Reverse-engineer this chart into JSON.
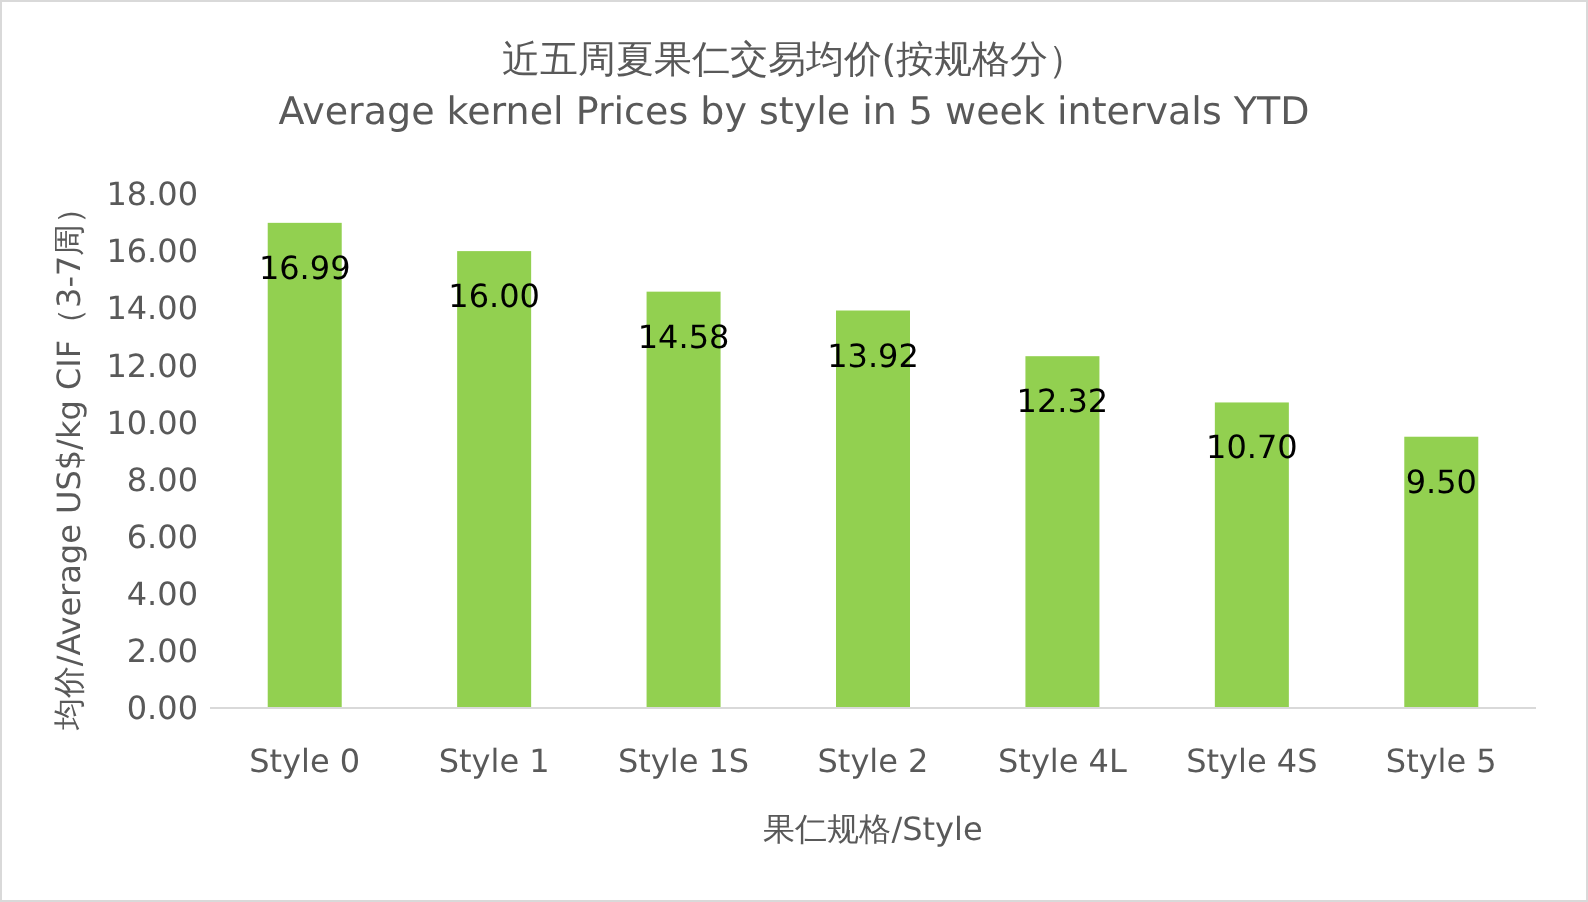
{
  "chart_data": {
    "type": "bar",
    "title": "近五周夏果仁交易均价(按规格分）",
    "subtitle": "Average kernel Prices by style in 5 week intervals YTD",
    "xlabel": "果仁规格/Style",
    "ylabel": "均价/Average US$/kg CIF（3-7周）",
    "categories": [
      "Style 0",
      "Style 1",
      "Style 1S",
      "Style 2",
      "Style 4L",
      "Style 4S",
      "Style 5"
    ],
    "values": [
      16.99,
      16.0,
      14.58,
      13.92,
      12.32,
      10.7,
      9.5
    ],
    "value_labels": [
      "16.99",
      "16.00",
      "14.58",
      "13.92",
      "12.32",
      "10.70",
      "9.50"
    ],
    "color": "#92d050",
    "ylim": [
      0,
      18
    ],
    "yticks": [
      {
        "value": 0,
        "label": "0.00"
      },
      {
        "value": 2,
        "label": "2.00"
      },
      {
        "value": 4,
        "label": "4.00"
      },
      {
        "value": 6,
        "label": "6.00"
      },
      {
        "value": 8,
        "label": "8.00"
      },
      {
        "value": 10,
        "label": "10.00"
      },
      {
        "value": 12,
        "label": "12.00"
      },
      {
        "value": 14,
        "label": "14.00"
      },
      {
        "value": 16,
        "label": "16.00"
      },
      {
        "value": 18,
        "label": "18.00"
      }
    ]
  }
}
